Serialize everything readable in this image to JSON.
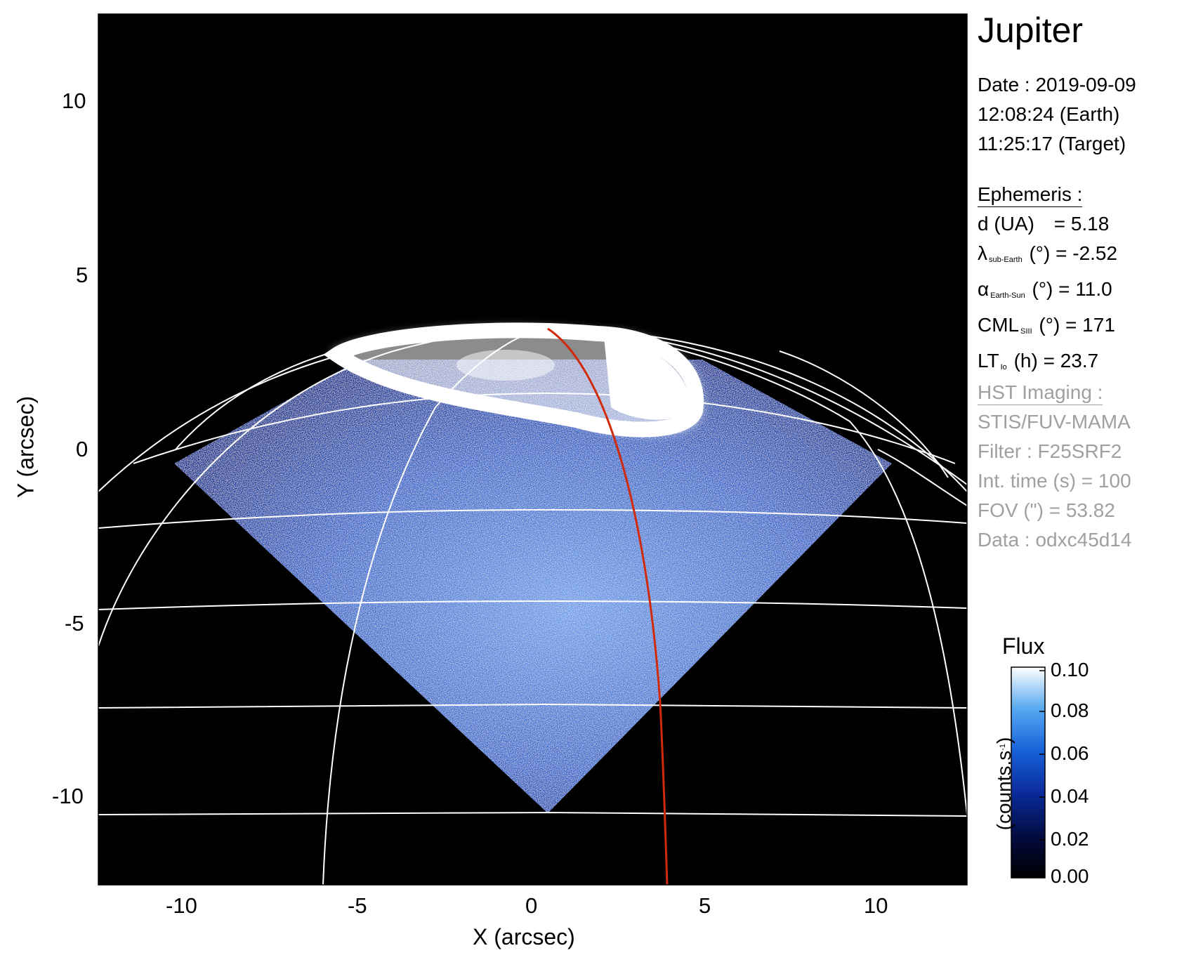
{
  "title": "Jupiter",
  "date": {
    "line1": "Date : 2019-09-09",
    "line2": "12:08:24 (Earth)",
    "line3": "11:25:17 (Target)"
  },
  "ephemeris": {
    "header": "Ephemeris :",
    "d_label": "d (UA)",
    "d_value": "= 5.18",
    "lambda_sym": "λ",
    "lambda_sub": "sub-Earth",
    "lambda_value": "(°) = -2.52",
    "alpha_sym": "α",
    "alpha_sub": "Earth-Sun",
    "alpha_value": "(°) = 11.0",
    "cml_sym": "CML",
    "cml_sub": "SIII",
    "cml_value": "(°) = 171",
    "lt_sym": "LT",
    "lt_sub": "Io",
    "lt_value": "(h) = 23.7"
  },
  "hst": {
    "header": "HST Imaging :",
    "instrument": "STIS/FUV-MAMA",
    "filter": "Filter : F25SRF2",
    "int_time": "Int. time (s) = 100",
    "fov": "FOV (\") = 53.82",
    "data": "Data : odxc45d14"
  },
  "axes": {
    "xlabel": "X (arcsec)",
    "ylabel": "Y (arcsec)",
    "xticks": [
      "-10",
      "-5",
      "0",
      "5",
      "10"
    ],
    "yticks": [
      "10",
      "5",
      "0",
      "-5",
      "-10"
    ],
    "xrange": [
      -12.5,
      12.5
    ],
    "yrange": [
      -12.5,
      12.5
    ]
  },
  "colorbar": {
    "title": "Flux",
    "unit": "(counts.s",
    "unit_sup": "-1",
    "unit_close": ")",
    "ticks": [
      "0.10",
      "0.08",
      "0.06",
      "0.04",
      "0.02",
      "0.00"
    ],
    "range": [
      0.0,
      0.1
    ]
  },
  "colors": {
    "background": "#000000",
    "grid": "#ffffff",
    "meridian_line": "#d02a0a",
    "emission_low": "#0a1a6e",
    "emission_mid": "#1e6fe0",
    "emission_high": "#ffffff",
    "info_grey": "#a0a0a0"
  }
}
